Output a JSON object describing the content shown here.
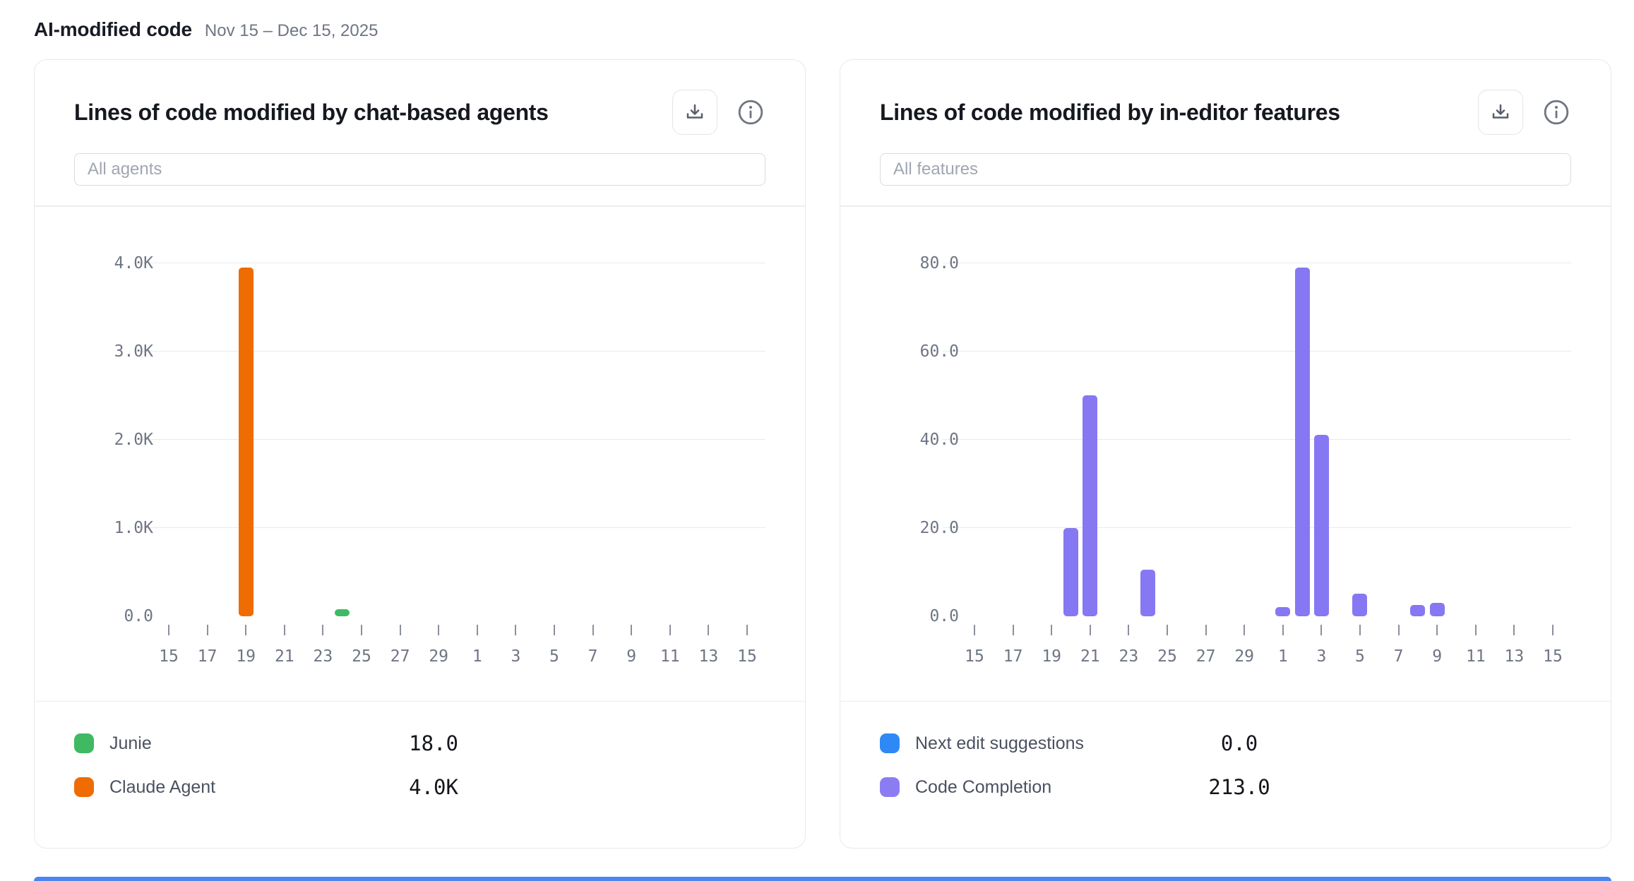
{
  "page": {
    "title": "AI-modified code",
    "date_range": "Nov 15 – Dec 15, 2025"
  },
  "icons": {
    "download": "download-icon",
    "info": "info-icon"
  },
  "colors": {
    "orange": "#ee6c02",
    "green": "#3fba62",
    "purple": "#8678f2",
    "purple_swatch": "#8c7cf4",
    "blue": "#2e89f7",
    "gridline": "#e9eaee",
    "axis_text": "#6f7683",
    "bottom_edge_blue": "#4b86f0"
  },
  "cards": [
    {
      "title": "Lines of code modified by chat-based agents",
      "filter_placeholder": "All agents",
      "filter_value": "",
      "legend": [
        {
          "label": "Junie",
          "value": "18.0",
          "color": "#3fba62"
        },
        {
          "label": "Claude Agent",
          "value": "4.0K",
          "color": "#ee6c02"
        }
      ]
    },
    {
      "title": "Lines of code modified by in-editor features",
      "filter_placeholder": "All features",
      "filter_value": "",
      "legend": [
        {
          "label": "Next edit suggestions",
          "value": "0.0",
          "color": "#2e89f7"
        },
        {
          "label": "Code Completion",
          "value": "213.0",
          "color": "#8c7cf4"
        }
      ]
    }
  ],
  "chart_data": [
    {
      "type": "bar",
      "title": "Lines of code modified by chat-based agents",
      "xlabel": "",
      "ylabel": "",
      "x_axis_days": "Nov 15 to Dec 15 (31 days)",
      "x_days_total": 31,
      "x_tick_labels": [
        "15",
        "17",
        "19",
        "21",
        "23",
        "25",
        "27",
        "29",
        "1",
        "3",
        "5",
        "7",
        "9",
        "11",
        "13",
        "15"
      ],
      "y_tick_labels": [
        "0.0",
        "1.0K",
        "2.0K",
        "3.0K",
        "4.0K"
      ],
      "ylim": [
        0,
        4000
      ],
      "grid": "horizontal",
      "legend_position": "bottom",
      "series": [
        {
          "name": "Junie",
          "color": "#3fba62",
          "total": 18,
          "points": [
            {
              "day": "Nov 24",
              "day_index": 9,
              "value": 18
            }
          ]
        },
        {
          "name": "Claude Agent",
          "color": "#ee6c02",
          "total": 4000,
          "points": [
            {
              "day": "Nov 19",
              "day_index": 4,
              "value": 3950
            }
          ]
        }
      ]
    },
    {
      "type": "bar",
      "title": "Lines of code modified by in-editor features",
      "xlabel": "",
      "ylabel": "",
      "x_axis_days": "Nov 15 to Dec 15 (31 days)",
      "x_days_total": 31,
      "x_tick_labels": [
        "15",
        "17",
        "19",
        "21",
        "23",
        "25",
        "27",
        "29",
        "1",
        "3",
        "5",
        "7",
        "9",
        "11",
        "13",
        "15"
      ],
      "y_tick_labels": [
        "0.0",
        "20.0",
        "40.0",
        "60.0",
        "80.0"
      ],
      "ylim": [
        0,
        80
      ],
      "grid": "horizontal",
      "legend_position": "bottom",
      "series": [
        {
          "name": "Next edit suggestions",
          "color": "#2e89f7",
          "total": 0,
          "points": []
        },
        {
          "name": "Code Completion",
          "color": "#8678f2",
          "total": 213,
          "points": [
            {
              "day": "Nov 20",
              "day_index": 5,
              "value": 20
            },
            {
              "day": "Nov 21",
              "day_index": 6,
              "value": 50
            },
            {
              "day": "Nov 24",
              "day_index": 9,
              "value": 10.5
            },
            {
              "day": "Dec 1",
              "day_index": 16,
              "value": 2
            },
            {
              "day": "Dec 2",
              "day_index": 17,
              "value": 79
            },
            {
              "day": "Dec 3",
              "day_index": 18,
              "value": 41
            },
            {
              "day": "Dec 5",
              "day_index": 20,
              "value": 5
            },
            {
              "day": "Dec 8",
              "day_index": 23,
              "value": 2.5
            },
            {
              "day": "Dec 9",
              "day_index": 24,
              "value": 3
            }
          ]
        }
      ]
    }
  ]
}
